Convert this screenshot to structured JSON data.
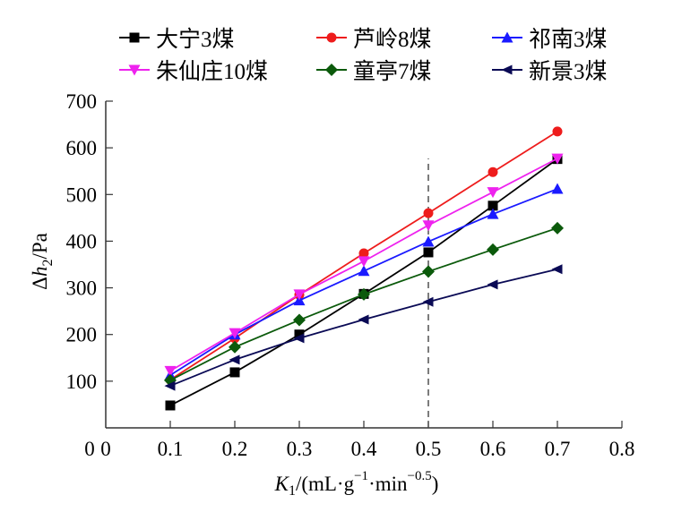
{
  "chart_data": {
    "type": "line",
    "title": "",
    "xlabel": "K1/(mL·g−1·min−0.5)",
    "ylabel": "Δh2/Pa",
    "xlim": [
      0,
      0.8
    ],
    "ylim": [
      0,
      700
    ],
    "x_ticks": [
      "0",
      "0.1",
      "0.2",
      "0.3",
      "0.4",
      "0.5",
      "0.6",
      "0.7",
      "0.8"
    ],
    "y_ticks": [
      "0",
      "100",
      "200",
      "300",
      "400",
      "500",
      "600",
      "700"
    ],
    "grid": false,
    "legend_position": "top",
    "annotations": [
      {
        "type": "vertical-dashed-line",
        "x": 0.5
      }
    ],
    "x": [
      0.1,
      0.2,
      0.3,
      0.4,
      0.5,
      0.6,
      0.7
    ],
    "series": [
      {
        "name": "大宁3煤",
        "color": "#000000",
        "marker": "square",
        "values": [
          48,
          119,
          200,
          287,
          376,
          476,
          576
        ]
      },
      {
        "name": "芦岭8煤",
        "color": "#ee1c1c",
        "marker": "circle",
        "values": [
          103,
          192,
          285,
          374,
          460,
          548,
          635
        ]
      },
      {
        "name": "祁南3煤",
        "color": "#1a1aff",
        "marker": "triangle-up",
        "values": [
          113,
          200,
          273,
          336,
          399,
          458,
          512
        ]
      },
      {
        "name": "朱仙庄10煤",
        "color": "#ee22ee",
        "marker": "triangle-down",
        "values": [
          122,
          203,
          286,
          357,
          434,
          505,
          577
        ]
      },
      {
        "name": "童亭7煤",
        "color": "#0b5a0b",
        "marker": "diamond",
        "values": [
          102,
          173,
          231,
          286,
          335,
          382,
          428
        ]
      },
      {
        "name": "新景3煤",
        "color": "#0a0a55",
        "marker": "triangle-left",
        "values": [
          90,
          146,
          192,
          232,
          270,
          307,
          340
        ]
      }
    ]
  },
  "axis_labels": {
    "y_delta": "Δ",
    "y_h": "h",
    "y_sub": "2",
    "y_unit": "/Pa",
    "x_k": "K",
    "x_sub": "1",
    "x_unit_a": "/(mL·g",
    "x_sup1": "−1",
    "x_unit_b": "·min",
    "x_sup2": "−0.5",
    "x_close": ")"
  }
}
